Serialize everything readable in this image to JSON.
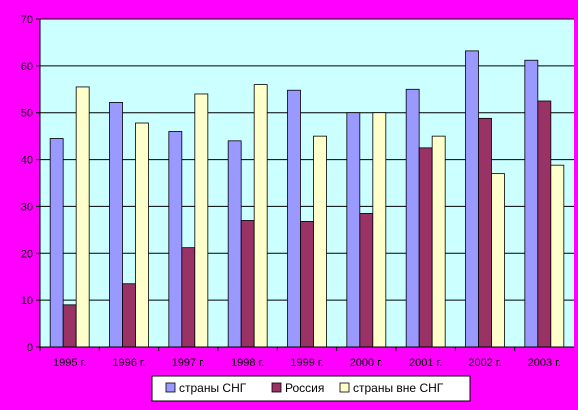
{
  "chart_data": {
    "type": "bar",
    "title": "",
    "xlabel": "",
    "ylabel": "",
    "ylim": [
      0,
      70
    ],
    "yticks": [
      0,
      10,
      20,
      30,
      40,
      50,
      60,
      70
    ],
    "grid": true,
    "legend_position": "bottom",
    "categories": [
      "1995 г.",
      "1996 г.",
      "1997 г.",
      "1998 г.",
      "1999 г.",
      "2000 г.",
      "2001 г.",
      "2002 г.",
      "2003 г."
    ],
    "series": [
      {
        "name": "страны СНГ",
        "color": "#9999ff",
        "values": [
          44.5,
          52.2,
          46,
          44,
          54.8,
          50,
          55,
          63.2,
          61.2
        ]
      },
      {
        "name": "Россия",
        "color": "#993366",
        "values": [
          9,
          13.5,
          21.2,
          27,
          26.8,
          28.5,
          42.5,
          48.8,
          52.5
        ]
      },
      {
        "name": "страны вне СНГ",
        "color": "#ffffcc",
        "values": [
          55.5,
          47.8,
          54,
          56,
          45,
          50,
          45,
          37,
          38.8
        ]
      }
    ],
    "plot_background": "#ccffff",
    "page_background": "#ff00ff"
  }
}
